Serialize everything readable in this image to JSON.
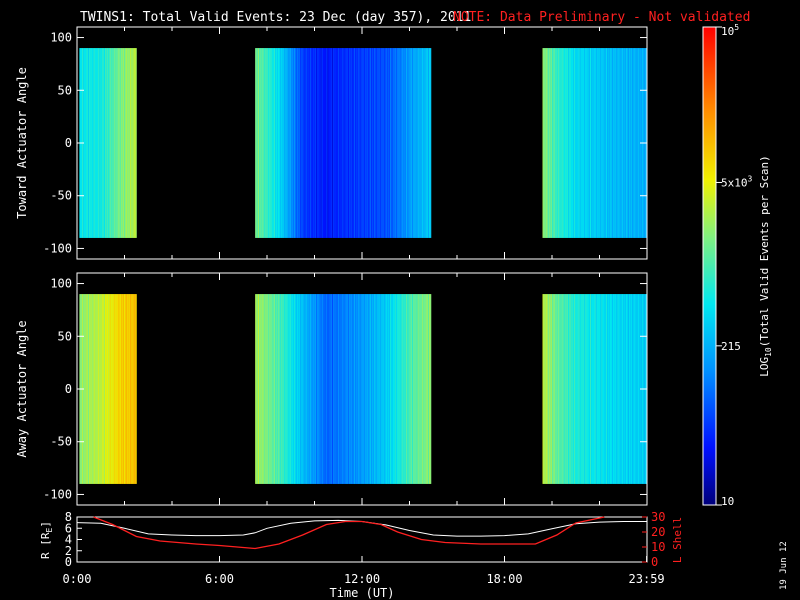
{
  "title": "TWINS1: Total Valid Events: 23 Dec (day 357), 2011",
  "note": "NOTE: Data Preliminary - Not validated",
  "date_stamp": "19 Jun 12",
  "colors": {
    "background": "#000000",
    "axes": "#ffffff",
    "note": "#ff2020",
    "lshell": "#ff2020",
    "r_line": "#ffffff"
  },
  "chart_data": [
    {
      "type": "heatmap",
      "panel": "toward",
      "ylabel": "Toward Actuator Angle",
      "ylim": [
        -110,
        110
      ],
      "yticks": [
        100,
        50,
        0,
        -50,
        -100
      ],
      "data_y_range": [
        -90,
        90
      ],
      "xlim_hours": [
        0,
        24
      ],
      "data_intervals_hours": [
        [
          0.1,
          2.5
        ],
        [
          7.5,
          14.9
        ],
        [
          19.6,
          24.0
        ]
      ],
      "log10_events_profile": {
        "hours": [
          0.1,
          1.0,
          1.8,
          2.5,
          7.5,
          8.5,
          9.5,
          10.5,
          11.0,
          12.0,
          13.0,
          14.0,
          14.9,
          19.6,
          20.2,
          21.0,
          22.5,
          24.0
        ],
        "values": [
          2.7,
          2.75,
          3.2,
          3.5,
          3.2,
          2.6,
          1.7,
          1.5,
          1.6,
          1.7,
          1.8,
          2.2,
          2.5,
          3.3,
          2.9,
          2.6,
          2.4,
          2.3
        ]
      }
    },
    {
      "type": "heatmap",
      "panel": "away",
      "ylabel": "Away Actuator Angle",
      "ylim": [
        -110,
        110
      ],
      "yticks": [
        100,
        50,
        0,
        -50,
        -100
      ],
      "data_y_range": [
        -90,
        90
      ],
      "xlim_hours": [
        0,
        24
      ],
      "data_intervals_hours": [
        [
          0.1,
          2.5
        ],
        [
          7.5,
          14.9
        ],
        [
          19.6,
          24.0
        ]
      ],
      "log10_events_profile": {
        "hours": [
          0.1,
          1.0,
          1.8,
          2.5,
          7.5,
          8.5,
          9.5,
          10.5,
          11.0,
          12.0,
          13.0,
          14.0,
          14.9,
          19.6,
          20.2,
          21.0,
          22.5,
          24.0
        ],
        "values": [
          3.3,
          3.5,
          3.9,
          4.0,
          3.4,
          3.0,
          2.4,
          1.9,
          2.0,
          2.2,
          2.5,
          3.0,
          3.3,
          3.5,
          3.1,
          2.8,
          2.6,
          2.5
        ]
      }
    },
    {
      "type": "line",
      "panel": "orbit",
      "xlabel": "Time (UT)",
      "xticks": [
        "0:00",
        "6:00",
        "12:00",
        "18:00",
        "23:59"
      ],
      "xtick_hours": [
        0,
        6,
        12,
        18,
        23.983
      ],
      "ylabel_left": "R [R",
      "ylabel_left_sub": "E",
      "ylabel_left_end": "]",
      "ylim_left": [
        0,
        8
      ],
      "yticks_left": [
        "8",
        "6",
        "4",
        "2",
        "0"
      ],
      "ylabel_right": "L Shell",
      "ylim_right": [
        0,
        30
      ],
      "yticks_right": [
        "30",
        "20",
        "10",
        "0"
      ],
      "series": [
        {
          "axis": "left",
          "x": [
            0,
            1,
            2,
            3,
            4,
            5,
            6,
            7,
            7.5,
            8,
            9,
            10,
            11,
            12,
            13,
            14,
            15,
            16,
            17,
            18,
            19,
            20,
            21,
            22,
            23,
            24
          ],
          "y": [
            7.0,
            6.9,
            6.0,
            5.0,
            4.8,
            4.7,
            4.7,
            4.8,
            5.2,
            6.0,
            6.9,
            7.3,
            7.4,
            7.2,
            6.6,
            5.6,
            4.8,
            4.6,
            4.6,
            4.7,
            5.0,
            5.9,
            6.8,
            7.1,
            7.2,
            7.2
          ]
        },
        {
          "axis": "right",
          "x": [
            0.7,
            1.5,
            2.5,
            3.5,
            5,
            6,
            7.5,
            8.5,
            9.5,
            10.5,
            11.3,
            12.0,
            12.8,
            13.5,
            14.5,
            15.5,
            17,
            18,
            19.3,
            20.2,
            21.0,
            22.2
          ],
          "y": [
            30,
            25,
            17,
            14,
            12,
            11,
            9,
            12,
            18,
            25,
            27,
            27,
            25,
            20,
            15,
            13,
            12,
            12,
            12,
            18,
            26,
            30
          ]
        }
      ]
    },
    {
      "type": "heatmap",
      "panel": "colorbar",
      "label_base": "LOG",
      "label_sub": "10",
      "label_rest": "(Total Valid Events per Scan)",
      "range_log10": [
        1,
        5
      ],
      "ticks": [
        {
          "log10": 5,
          "text": "10",
          "sup": "5"
        },
        {
          "log10": 3.699,
          "text": "5x10",
          "sup": "3"
        },
        {
          "log10": 2.332,
          "text": "215",
          "sup": ""
        },
        {
          "log10": 1,
          "text": "10",
          "sup": ""
        }
      ]
    }
  ]
}
